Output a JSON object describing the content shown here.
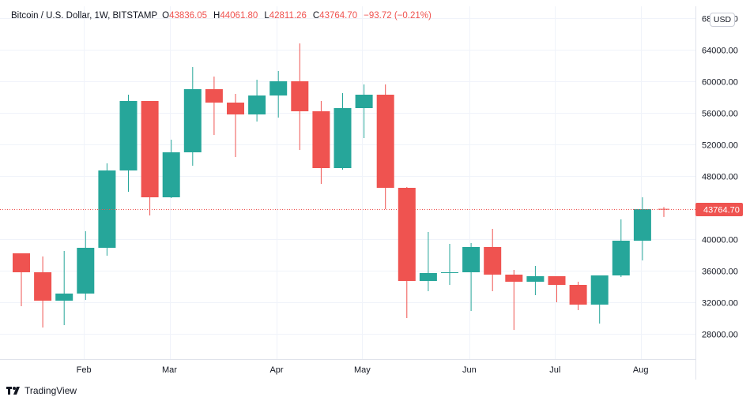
{
  "legend": {
    "symbol": "Bitcoin / U.S. Dollar, 1W, BITSTAMP",
    "open_label": "O",
    "open": "43836.05",
    "high_label": "H",
    "high": "44061.80",
    "low_label": "L",
    "low": "42811.26",
    "close_label": "C",
    "close": "43764.70",
    "change": "−93.72 (−0.21%)"
  },
  "currency_badge": "USD",
  "brand": "TradingView",
  "colors": {
    "up": "#26a69a",
    "down": "#ef5350",
    "last_price": "#ef5350"
  },
  "chart_data": {
    "type": "candlestick",
    "title": "Bitcoin / U.S. Dollar, 1W, BITSTAMP",
    "x_tick_labels": [
      "Feb",
      "Mar",
      "Apr",
      "May",
      "Jun",
      "Jul",
      "Aug"
    ],
    "y_tick_labels": [
      "28000.00",
      "32000.00",
      "36000.00",
      "40000.00",
      "48000.00",
      "52000.00",
      "56000.00",
      "60000.00",
      "64000.00",
      "68000.00"
    ],
    "y_ticks": [
      28000,
      32000,
      36000,
      40000,
      48000,
      52000,
      56000,
      60000,
      64000,
      68000
    ],
    "ylim": [
      23000,
      69000
    ],
    "last_price": 43764.7,
    "last_price_label": "43764.70",
    "grid": true,
    "candles": [
      {
        "date": "2021-01-11",
        "open": 38200,
        "high": 38200,
        "low": 31500,
        "close": 35800
      },
      {
        "date": "2021-01-18",
        "open": 35800,
        "high": 37800,
        "low": 28800,
        "close": 32200
      },
      {
        "date": "2021-01-25",
        "open": 32200,
        "high": 38500,
        "low": 29100,
        "close": 33100
      },
      {
        "date": "2021-02-01",
        "open": 33100,
        "high": 41000,
        "low": 32300,
        "close": 38900
      },
      {
        "date": "2021-02-08",
        "open": 38900,
        "high": 49600,
        "low": 37900,
        "close": 48700
      },
      {
        "date": "2021-02-15",
        "open": 48700,
        "high": 58300,
        "low": 46000,
        "close": 57500
      },
      {
        "date": "2021-02-22",
        "open": 57500,
        "high": 57500,
        "low": 43000,
        "close": 45300
      },
      {
        "date": "2021-03-01",
        "open": 45300,
        "high": 52600,
        "low": 45200,
        "close": 51000
      },
      {
        "date": "2021-03-08",
        "open": 51000,
        "high": 61800,
        "low": 49300,
        "close": 59000
      },
      {
        "date": "2021-03-15",
        "open": 59000,
        "high": 60600,
        "low": 53200,
        "close": 57300
      },
      {
        "date": "2021-03-22",
        "open": 57300,
        "high": 58400,
        "low": 50400,
        "close": 55800
      },
      {
        "date": "2021-03-29",
        "open": 55800,
        "high": 60200,
        "low": 54900,
        "close": 58200
      },
      {
        "date": "2021-04-05",
        "open": 58200,
        "high": 61300,
        "low": 55400,
        "close": 60000
      },
      {
        "date": "2021-04-12",
        "open": 60000,
        "high": 64800,
        "low": 51300,
        "close": 56200
      },
      {
        "date": "2021-04-19",
        "open": 56200,
        "high": 57500,
        "low": 47000,
        "close": 49000
      },
      {
        "date": "2021-04-26",
        "open": 49000,
        "high": 58500,
        "low": 48800,
        "close": 56600
      },
      {
        "date": "2021-05-03",
        "open": 56600,
        "high": 59600,
        "low": 52800,
        "close": 58300
      },
      {
        "date": "2021-05-10",
        "open": 58300,
        "high": 59600,
        "low": 43800,
        "close": 46500
      },
      {
        "date": "2021-05-17",
        "open": 46500,
        "high": 46600,
        "low": 30000,
        "close": 34700
      },
      {
        "date": "2021-05-24",
        "open": 34700,
        "high": 40900,
        "low": 33400,
        "close": 35700
      },
      {
        "date": "2021-05-31",
        "open": 35700,
        "high": 39400,
        "low": 34200,
        "close": 35800
      },
      {
        "date": "2021-06-07",
        "open": 35800,
        "high": 39500,
        "low": 30900,
        "close": 39000
      },
      {
        "date": "2021-06-14",
        "open": 39000,
        "high": 41300,
        "low": 33400,
        "close": 35500
      },
      {
        "date": "2021-06-21",
        "open": 35500,
        "high": 36100,
        "low": 28500,
        "close": 34600
      },
      {
        "date": "2021-06-28",
        "open": 34600,
        "high": 36600,
        "low": 32900,
        "close": 35300
      },
      {
        "date": "2021-07-05",
        "open": 35300,
        "high": 35300,
        "low": 32000,
        "close": 34200
      },
      {
        "date": "2021-07-12",
        "open": 34200,
        "high": 34600,
        "low": 31000,
        "close": 31700
      },
      {
        "date": "2021-07-19",
        "open": 31700,
        "high": 35400,
        "low": 29300,
        "close": 35400
      },
      {
        "date": "2021-07-26",
        "open": 35400,
        "high": 42500,
        "low": 35200,
        "close": 39800
      },
      {
        "date": "2021-08-02",
        "open": 39800,
        "high": 45300,
        "low": 37300,
        "close": 43800
      },
      {
        "date": "2021-08-09",
        "open": 43836.05,
        "high": 44061.8,
        "low": 42811.26,
        "close": 43764.7
      }
    ]
  }
}
